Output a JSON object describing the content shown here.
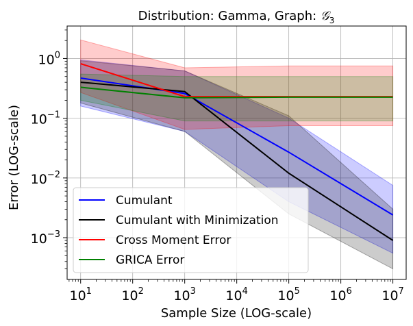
{
  "chart_data": {
    "type": "line",
    "title": "Distribution: Gamma, Graph: ",
    "title_symbol": "𝒢",
    "title_subscript": "3",
    "xlabel": "Sample Size (LOG-scale)",
    "ylabel": "Error (LOG-scale)",
    "xscale": "log",
    "yscale": "log",
    "xlim": [
      5.5,
      18000000
    ],
    "ylim": [
      0.0002,
      3.5
    ],
    "grid": true,
    "legend_position": "lower-left",
    "x": [
      10,
      1000,
      100000,
      10000000
    ],
    "x_ticks": [
      {
        "value": 10,
        "base": "10",
        "exp": "1"
      },
      {
        "value": 100,
        "base": "10",
        "exp": "2"
      },
      {
        "value": 1000,
        "base": "10",
        "exp": "3"
      },
      {
        "value": 10000,
        "base": "10",
        "exp": "4"
      },
      {
        "value": 100000,
        "base": "10",
        "exp": "5"
      },
      {
        "value": 1000000,
        "base": "10",
        "exp": "6"
      },
      {
        "value": 10000000,
        "base": "10",
        "exp": "7"
      }
    ],
    "y_ticks": [
      {
        "value": 0.001,
        "base": "10",
        "exp": "−3"
      },
      {
        "value": 0.01,
        "base": "10",
        "exp": "−2"
      },
      {
        "value": 0.1,
        "base": "10",
        "exp": "−1"
      },
      {
        "value": 1,
        "base": "10",
        "exp": "0"
      }
    ],
    "series": [
      {
        "name": "Cumulant",
        "color": "#0000ff",
        "values": [
          0.47,
          0.26,
          0.027,
          0.0024
        ],
        "lower": [
          0.16,
          0.06,
          0.004,
          0.00055
        ],
        "upper": [
          0.95,
          0.62,
          0.1,
          0.0075
        ]
      },
      {
        "name": "Cumulant with Minimization",
        "color": "#000000",
        "values": [
          0.4,
          0.28,
          0.012,
          0.0009
        ],
        "lower": [
          0.18,
          0.06,
          0.0025,
          0.0003
        ],
        "upper": [
          0.92,
          0.62,
          0.11,
          0.003
        ]
      },
      {
        "name": "Cross Moment Error",
        "color": "#ff0000",
        "values": [
          0.82,
          0.23,
          0.23,
          0.23
        ],
        "lower": [
          0.27,
          0.065,
          0.075,
          0.075
        ],
        "upper": [
          2.05,
          0.7,
          0.75,
          0.75
        ]
      },
      {
        "name": "GRICA Error",
        "color": "#008000",
        "values": [
          0.33,
          0.22,
          0.225,
          0.225
        ],
        "lower": [
          0.2,
          0.09,
          0.09,
          0.09
        ],
        "upper": [
          0.55,
          0.5,
          0.5,
          0.5
        ]
      }
    ]
  }
}
